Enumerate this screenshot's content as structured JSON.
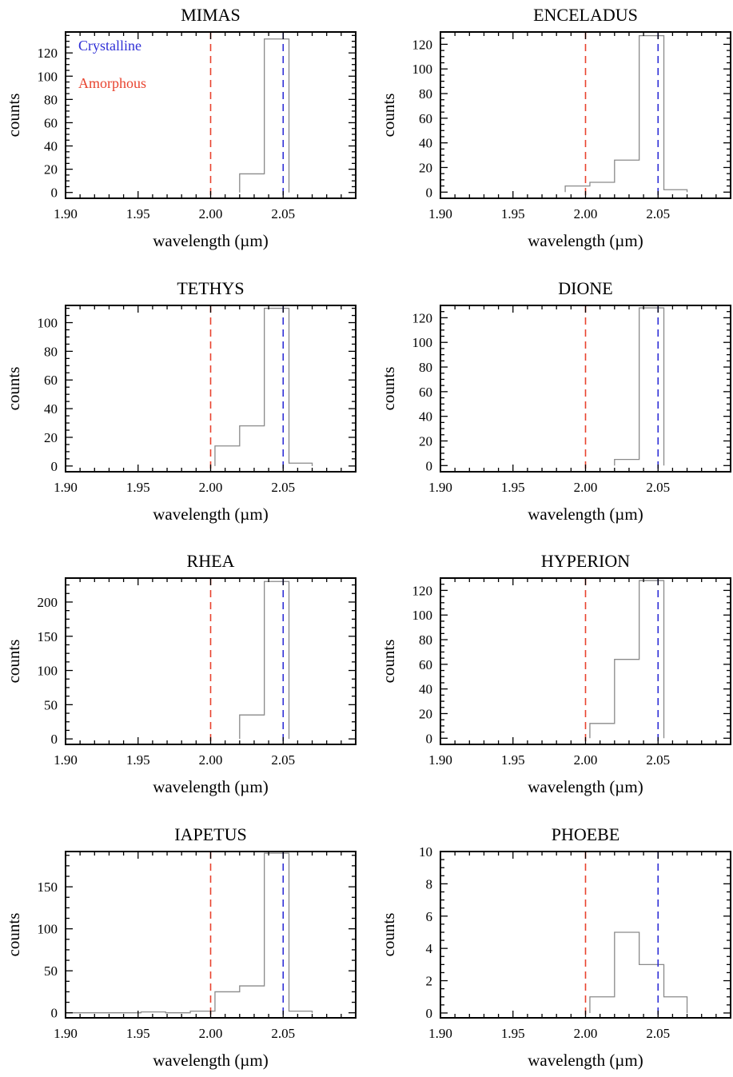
{
  "chart_data": [
    {
      "type": "bar",
      "title": "MIMAS",
      "xlabel": "wavelength (µm)",
      "ylabel": "counts",
      "xlim": [
        1.9,
        2.1
      ],
      "ylim": [
        -5,
        138
      ],
      "xticks": [
        "1.90",
        "1.95",
        "2.00",
        "2.05"
      ],
      "xtick_values": [
        1.9,
        1.95,
        2.0,
        2.05
      ],
      "yticks": [
        0,
        20,
        40,
        60,
        80,
        100,
        120
      ],
      "bin_edges": [
        2.02,
        2.037,
        2.054
      ],
      "counts": [
        16,
        132
      ],
      "reference_lines": [
        {
          "name": "Amorphous",
          "x": 2.0,
          "color": "#e8432e"
        },
        {
          "name": "Crystalline",
          "x": 2.05,
          "color": "#2f2fd6"
        }
      ],
      "legend": [
        {
          "label": "Crystalline",
          "color": "#2f2fd6"
        },
        {
          "label": "Amorphous",
          "color": "#e8432e"
        }
      ]
    },
    {
      "type": "bar",
      "title": "ENCELADUS",
      "xlabel": "wavelength (µm)",
      "ylabel": "counts",
      "xlim": [
        1.9,
        2.1
      ],
      "ylim": [
        -5,
        130
      ],
      "xticks": [
        "1.90",
        "1.95",
        "2.00",
        "2.05"
      ],
      "xtick_values": [
        1.9,
        1.95,
        2.0,
        2.05
      ],
      "yticks": [
        0,
        20,
        40,
        60,
        80,
        100,
        120
      ],
      "bin_edges": [
        1.986,
        2.003,
        2.02,
        2.037,
        2.054,
        2.07
      ],
      "counts": [
        5,
        8,
        26,
        127,
        2
      ],
      "reference_lines": [
        {
          "name": "Amorphous",
          "x": 2.0,
          "color": "#e8432e"
        },
        {
          "name": "Crystalline",
          "x": 2.05,
          "color": "#2f2fd6"
        }
      ]
    },
    {
      "type": "bar",
      "title": "TETHYS",
      "xlabel": "wavelength (µm)",
      "ylabel": "counts",
      "xlim": [
        1.9,
        2.1
      ],
      "ylim": [
        -4,
        112
      ],
      "xticks": [
        "1.90",
        "1.95",
        "2.00",
        "2.05"
      ],
      "xtick_values": [
        1.9,
        1.95,
        2.0,
        2.05
      ],
      "yticks": [
        0,
        20,
        40,
        60,
        80,
        100
      ],
      "bin_edges": [
        2.003,
        2.02,
        2.037,
        2.054,
        2.07
      ],
      "counts": [
        14,
        28,
        110,
        2
      ],
      "reference_lines": [
        {
          "name": "Amorphous",
          "x": 2.0,
          "color": "#e8432e"
        },
        {
          "name": "Crystalline",
          "x": 2.05,
          "color": "#2f2fd6"
        }
      ]
    },
    {
      "type": "bar",
      "title": "DIONE",
      "xlabel": "wavelength (µm)",
      "ylabel": "counts",
      "xlim": [
        1.9,
        2.1
      ],
      "ylim": [
        -5,
        130
      ],
      "xticks": [
        "1.90",
        "1.95",
        "2.00",
        "2.05"
      ],
      "xtick_values": [
        1.9,
        1.95,
        2.0,
        2.05
      ],
      "yticks": [
        0,
        20,
        40,
        60,
        80,
        100,
        120
      ],
      "bin_edges": [
        2.02,
        2.037,
        2.054
      ],
      "counts": [
        5,
        128
      ],
      "reference_lines": [
        {
          "name": "Amorphous",
          "x": 2.0,
          "color": "#e8432e"
        },
        {
          "name": "Crystalline",
          "x": 2.05,
          "color": "#2f2fd6"
        }
      ]
    },
    {
      "type": "bar",
      "title": "RHEA",
      "xlabel": "wavelength (µm)",
      "ylabel": "counts",
      "xlim": [
        1.9,
        2.1
      ],
      "ylim": [
        -8,
        235
      ],
      "xticks": [
        "1.90",
        "1.95",
        "2.00",
        "2.05"
      ],
      "xtick_values": [
        1.9,
        1.95,
        2.0,
        2.05
      ],
      "yticks": [
        0,
        50,
        100,
        150,
        200
      ],
      "bin_edges": [
        2.02,
        2.037,
        2.054
      ],
      "counts": [
        35,
        230
      ],
      "reference_lines": [
        {
          "name": "Amorphous",
          "x": 2.0,
          "color": "#e8432e"
        },
        {
          "name": "Crystalline",
          "x": 2.05,
          "color": "#2f2fd6"
        }
      ]
    },
    {
      "type": "bar",
      "title": "HYPERION",
      "xlabel": "wavelength (µm)",
      "ylabel": "counts",
      "xlim": [
        1.9,
        2.1
      ],
      "ylim": [
        -5,
        130
      ],
      "xticks": [
        "1.90",
        "1.95",
        "2.00",
        "2.05"
      ],
      "xtick_values": [
        1.9,
        1.95,
        2.0,
        2.05
      ],
      "yticks": [
        0,
        20,
        40,
        60,
        80,
        100,
        120
      ],
      "bin_edges": [
        2.003,
        2.02,
        2.037,
        2.054
      ],
      "counts": [
        12,
        64,
        128
      ],
      "reference_lines": [
        {
          "name": "Amorphous",
          "x": 2.0,
          "color": "#e8432e"
        },
        {
          "name": "Crystalline",
          "x": 2.05,
          "color": "#2f2fd6"
        }
      ]
    },
    {
      "type": "bar",
      "title": "IAPETUS",
      "xlabel": "wavelength (µm)",
      "ylabel": "counts",
      "xlim": [
        1.9,
        2.1
      ],
      "ylim": [
        -6,
        192
      ],
      "xticks": [
        "1.90",
        "1.95",
        "2.00",
        "2.05"
      ],
      "xtick_values": [
        1.9,
        1.95,
        2.0,
        2.05
      ],
      "yticks": [
        0,
        50,
        100,
        150
      ],
      "bin_edges": [
        1.9,
        1.918,
        1.935,
        1.952,
        1.969,
        1.986,
        2.003,
        2.02,
        2.037,
        2.054,
        2.07
      ],
      "counts": [
        0,
        0,
        0,
        1,
        0,
        2,
        25,
        32,
        190,
        2
      ],
      "reference_lines": [
        {
          "name": "Amorphous",
          "x": 2.0,
          "color": "#e8432e"
        },
        {
          "name": "Crystalline",
          "x": 2.05,
          "color": "#2f2fd6"
        }
      ]
    },
    {
      "type": "bar",
      "title": "PHOEBE",
      "xlabel": "wavelength (µm)",
      "ylabel": "counts",
      "xlim": [
        1.9,
        2.1
      ],
      "ylim": [
        -0.3,
        10
      ],
      "xticks": [
        "1.90",
        "1.95",
        "2.00",
        "2.05"
      ],
      "xtick_values": [
        1.9,
        1.95,
        2.0,
        2.05
      ],
      "yticks": [
        0,
        2,
        4,
        6,
        8,
        10
      ],
      "bin_edges": [
        2.003,
        2.02,
        2.037,
        2.054,
        2.07
      ],
      "counts": [
        1,
        5,
        3,
        1
      ],
      "reference_lines": [
        {
          "name": "Amorphous",
          "x": 2.0,
          "color": "#e8432e"
        },
        {
          "name": "Crystalline",
          "x": 2.05,
          "color": "#2f2fd6"
        }
      ]
    }
  ]
}
